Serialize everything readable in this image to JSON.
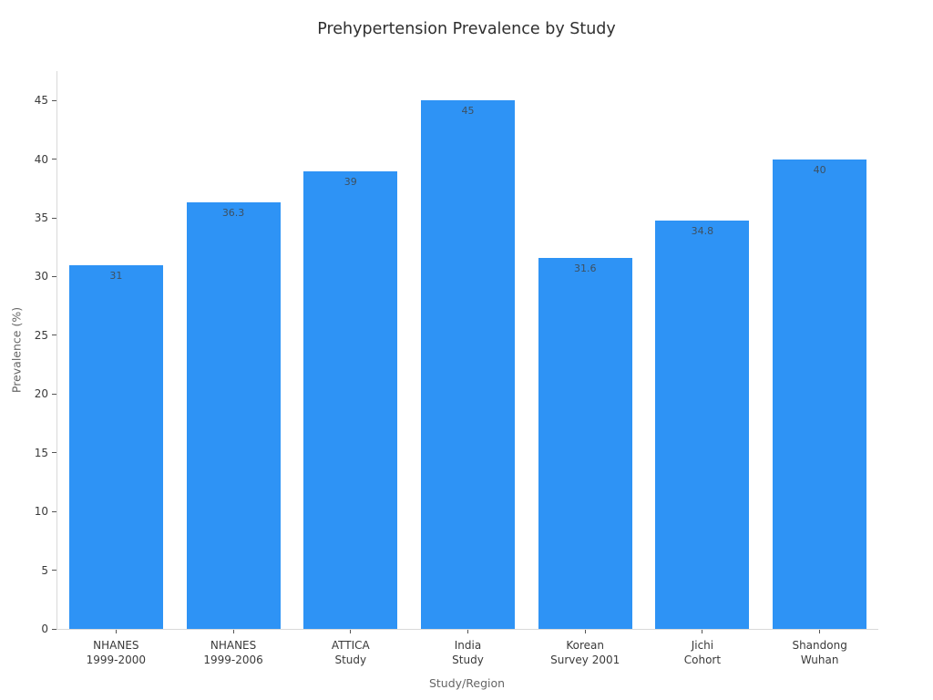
{
  "chart_data": {
    "type": "bar",
    "title": "Prehypertension Prevalence by Study",
    "xlabel": "Study/Region",
    "ylabel": "Prevalence (%)",
    "categories": [
      "NHANES\n1999-2000",
      "NHANES\n1999-2006",
      "ATTICA\nStudy",
      "India\nStudy",
      "Korean\nSurvey 2001",
      "Jichi\nCohort",
      "Shandong\nWuhan"
    ],
    "values": [
      31,
      36.3,
      39,
      45,
      31.6,
      34.8,
      40
    ],
    "bar_labels": [
      "31",
      "36.3",
      "39",
      "45",
      "31.6",
      "34.8",
      "40"
    ],
    "yticks": [
      0,
      5,
      10,
      15,
      20,
      25,
      30,
      35,
      40,
      45
    ],
    "ylim": [
      0,
      47.5
    ],
    "grid": false,
    "legend": false,
    "bar_width_fraction": 0.8,
    "colors": {
      "bar": "#2e93f5",
      "axis_line": "#d9d9d9",
      "tick_mark": "#555555",
      "tick_label": "#3a3a3a",
      "bar_label": "#3e5060",
      "axis_title": "#666666",
      "title": "#2f2f2f",
      "background": "#ffffff"
    }
  }
}
